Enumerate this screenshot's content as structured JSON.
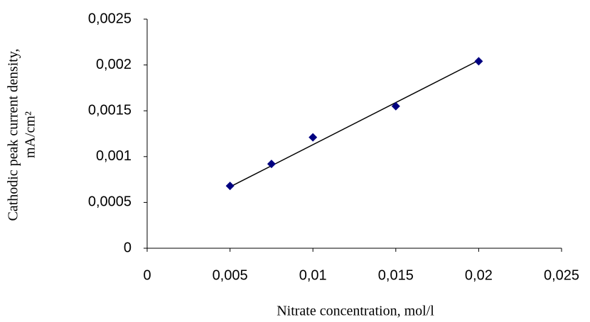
{
  "chart_data": {
    "type": "scatter",
    "x_label": "Nitrate concentration, mol/l",
    "y_label": [
      "Cathodic peak current density,",
      "mA/cm²"
    ],
    "series": [
      {
        "color": "#000080",
        "x": [
          0.005,
          0.0075,
          0.01,
          0.015,
          0.02
        ],
        "values": [
          0.00068,
          0.00092,
          0.00121,
          0.00155,
          0.00204
        ]
      }
    ],
    "trendline": {
      "color": "#000000",
      "x": [
        0.005,
        0.02
      ],
      "values": [
        0.00067,
        0.00205
      ]
    },
    "xlim": [
      0,
      0.025
    ],
    "xticks": [
      0,
      {
        "value": 0.005,
        "label": "0,005"
      },
      {
        "value": 0.01,
        "label": "0,01"
      },
      {
        "value": 0.015,
        "label": "0,015"
      },
      {
        "value": 0.02,
        "label": "0,02"
      },
      {
        "value": 0.025,
        "label": "0,025"
      }
    ],
    "ylim": [
      0,
      0.0025
    ],
    "yticks": [
      0,
      {
        "value": 0.0005,
        "label": "0,0005"
      },
      {
        "value": 0.001,
        "label": "0,001"
      },
      {
        "value": 0.0015,
        "label": "0,0015"
      },
      {
        "value": 0.002,
        "label": "0,002"
      },
      {
        "value": 0.0025,
        "label": "0,0025"
      }
    ],
    "grid": false
  }
}
